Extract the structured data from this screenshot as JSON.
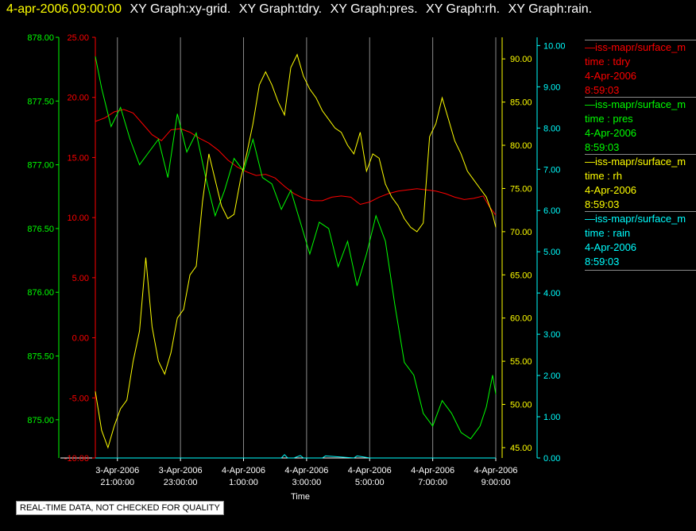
{
  "header": {
    "timestamp": "4-apr-2006,09:00:00",
    "titles": [
      "XY Graph:xy-grid.",
      "XY Graph:tdry.",
      "XY Graph:pres.",
      "XY Graph:rh.",
      "XY Graph:rain."
    ]
  },
  "footer_note": "REAL-TIME DATA, NOT CHECKED FOR QUALITY",
  "colors": {
    "tdry": "#ff0000",
    "pres": "#00ff00",
    "rh": "#ffff00",
    "rain": "#00ffff",
    "grid": "#8a8a8a"
  },
  "legend": [
    {
      "source": "iss-mapr/surface_m",
      "label": "time : tdry",
      "date": "4-Apr-2006",
      "time": "8:59:03",
      "color": "#ff0000"
    },
    {
      "source": "iss-mapr/surface_m",
      "label": "time : pres",
      "date": "4-Apr-2006",
      "time": "8:59:03",
      "color": "#00ff00"
    },
    {
      "source": "iss-mapr/surface_m",
      "label": "time : rh",
      "date": "4-Apr-2006",
      "time": "8:59:03",
      "color": "#ffff00"
    },
    {
      "source": "iss-mapr/surface_m",
      "label": "time : rain",
      "date": "4-Apr-2006",
      "time": "8:59:03",
      "color": "#00ffff"
    }
  ],
  "chart_data": {
    "type": "line",
    "xlabel": "Time",
    "x_ticks": [
      {
        "date": "3-Apr-2006",
        "time": "21:00:00"
      },
      {
        "date": "3-Apr-2006",
        "time": "23:00:00"
      },
      {
        "date": "4-Apr-2006",
        "time": "1:00:00"
      },
      {
        "date": "4-Apr-2006",
        "time": "3:00:00"
      },
      {
        "date": "4-Apr-2006",
        "time": "5:00:00"
      },
      {
        "date": "4-Apr-2006",
        "time": "7:00:00"
      },
      {
        "date": "4-Apr-2006",
        "time": "9:00:00"
      }
    ],
    "xlim_hours": [
      20.3,
      33.0
    ],
    "grid": true,
    "axes": {
      "pres": {
        "ylim": [
          874.7,
          878.0
        ],
        "ticks": [
          "875.00",
          "875.50",
          "876.00",
          "876.50",
          "877.00",
          "877.50",
          "878.00"
        ]
      },
      "tdry": {
        "ylim": [
          -10,
          25
        ],
        "ticks": [
          "-10.00",
          "-5.00",
          "0.00",
          "5.00",
          "10.00",
          "15.00",
          "20.00",
          "25.00"
        ]
      },
      "rh": {
        "ylim": [
          43.8,
          92.5
        ],
        "ticks": [
          "45.00",
          "50.00",
          "55.00",
          "60.00",
          "65.00",
          "70.00",
          "75.00",
          "80.00",
          "85.00",
          "90.00"
        ]
      },
      "rain": {
        "ylim": [
          0,
          10.2
        ],
        "ticks": [
          "0.00",
          "1.00",
          "2.00",
          "3.00",
          "4.00",
          "5.00",
          "6.00",
          "7.00",
          "8.00",
          "9.00",
          "10.00"
        ]
      }
    },
    "series": [
      {
        "key": "tdry",
        "x": [
          20.3,
          20.6,
          20.9,
          21.2,
          21.5,
          21.8,
          22.1,
          22.4,
          22.7,
          23.0,
          23.3,
          23.6,
          23.9,
          24.2,
          24.5,
          24.8,
          25.1,
          25.4,
          25.7,
          26.0,
          26.3,
          26.6,
          26.9,
          27.2,
          27.5,
          27.8,
          28.1,
          28.4,
          28.7,
          29.0,
          29.3,
          29.6,
          29.9,
          30.2,
          30.5,
          30.8,
          31.1,
          31.4,
          31.7,
          32.0,
          32.3,
          32.6,
          32.8,
          33.0
        ],
        "y": [
          18.0,
          18.3,
          18.8,
          19.0,
          18.7,
          17.8,
          16.9,
          16.4,
          17.3,
          17.4,
          17.1,
          16.6,
          16.2,
          15.6,
          14.8,
          14.2,
          13.8,
          13.5,
          13.6,
          13.3,
          12.6,
          12.0,
          11.6,
          11.4,
          11.4,
          11.7,
          11.8,
          11.7,
          11.1,
          11.3,
          11.7,
          12.0,
          12.2,
          12.3,
          12.4,
          12.3,
          12.2,
          12.0,
          11.7,
          11.5,
          11.6,
          11.8,
          10.9,
          10.2
        ]
      },
      {
        "key": "pres",
        "x": [
          20.3,
          20.5,
          20.8,
          21.1,
          21.4,
          21.7,
          22.0,
          22.3,
          22.6,
          22.9,
          23.2,
          23.5,
          23.8,
          24.1,
          24.4,
          24.7,
          25.0,
          25.3,
          25.6,
          25.9,
          26.2,
          26.5,
          26.8,
          27.1,
          27.4,
          27.7,
          28.0,
          28.3,
          28.6,
          28.9,
          29.2,
          29.5,
          29.8,
          30.1,
          30.4,
          30.7,
          31.0,
          31.3,
          31.6,
          31.9,
          32.2,
          32.5,
          32.7,
          32.9,
          33.0
        ],
        "y": [
          877.85,
          877.6,
          877.3,
          877.45,
          877.2,
          877.0,
          877.1,
          877.2,
          876.9,
          877.4,
          877.1,
          877.25,
          876.9,
          876.6,
          876.8,
          877.05,
          876.95,
          877.2,
          876.9,
          876.85,
          876.65,
          876.8,
          876.55,
          876.3,
          876.55,
          876.5,
          876.2,
          876.4,
          876.05,
          876.3,
          876.6,
          876.4,
          875.9,
          875.45,
          875.35,
          875.05,
          874.95,
          875.15,
          875.05,
          874.9,
          874.85,
          874.95,
          875.1,
          875.35,
          875.2
        ]
      },
      {
        "key": "rh",
        "x": [
          20.3,
          20.5,
          20.7,
          20.9,
          21.1,
          21.3,
          21.5,
          21.7,
          21.9,
          22.1,
          22.3,
          22.5,
          22.7,
          22.9,
          23.1,
          23.3,
          23.5,
          23.7,
          23.9,
          24.1,
          24.3,
          24.5,
          24.7,
          24.9,
          25.1,
          25.3,
          25.5,
          25.7,
          25.9,
          26.1,
          26.3,
          26.5,
          26.7,
          26.9,
          27.1,
          27.3,
          27.5,
          27.7,
          27.9,
          28.1,
          28.3,
          28.5,
          28.7,
          28.9,
          29.1,
          29.3,
          29.5,
          29.7,
          29.9,
          30.1,
          30.3,
          30.5,
          30.7,
          30.9,
          31.1,
          31.3,
          31.5,
          31.7,
          31.9,
          32.1,
          32.3,
          32.5,
          32.7,
          32.9,
          33.0
        ],
        "y": [
          51.5,
          47.0,
          45.0,
          47.5,
          49.5,
          50.5,
          55.0,
          58.5,
          67.0,
          59.0,
          55.0,
          53.5,
          56.0,
          60.0,
          61.0,
          65.0,
          66.0,
          73.5,
          79.0,
          76.0,
          73.0,
          71.5,
          72.0,
          76.0,
          79.0,
          82.5,
          87.0,
          88.5,
          87.0,
          85.0,
          83.5,
          89.0,
          90.5,
          88.0,
          86.5,
          85.5,
          84.0,
          83.0,
          82.0,
          81.5,
          80.0,
          79.0,
          81.5,
          77.0,
          79.0,
          78.5,
          75.5,
          74.0,
          73.0,
          71.5,
          70.5,
          70.0,
          71.0,
          81.0,
          82.5,
          85.5,
          83.0,
          80.5,
          79.0,
          77.0,
          76.0,
          75.0,
          74.0,
          72.0,
          70.5
        ]
      },
      {
        "key": "rain",
        "x": [
          20.3,
          26.2,
          26.3,
          26.4,
          26.6,
          26.8,
          26.9,
          27.5,
          27.6,
          28.5,
          28.6,
          29.0,
          33.0
        ],
        "y": [
          0.0,
          0.0,
          0.08,
          0.0,
          0.0,
          0.06,
          0.0,
          0.0,
          0.05,
          0.0,
          0.05,
          0.0,
          0.0
        ]
      }
    ]
  }
}
